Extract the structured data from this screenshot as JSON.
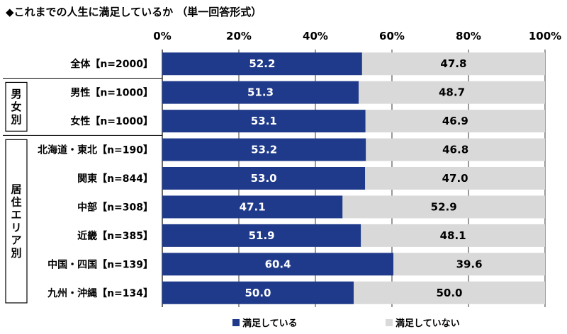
{
  "chart_data": {
    "type": "bar",
    "orientation": "horizontal",
    "stacked": true,
    "title": "◆これまでの人生に満足しているか （単一回答形式）",
    "x_ticks": [
      "0%",
      "20%",
      "40%",
      "60%",
      "80%",
      "100%"
    ],
    "xlim": [
      0,
      100
    ],
    "groups": [
      {
        "label": "",
        "rows": [
          0
        ]
      },
      {
        "label": "男女別",
        "rows": [
          1,
          2
        ]
      },
      {
        "label": "居住エリア別",
        "rows": [
          3,
          4,
          5,
          6,
          7,
          8
        ]
      }
    ],
    "categories": [
      "全体【n=2000】",
      "男性【n=1000】",
      "女性【n=1000】",
      "北海道・東北【n=190】",
      "関東【n=844】",
      "中部【n=308】",
      "近畿【n=385】",
      "中国・四国【n=139】",
      "九州・沖縄【n=134】"
    ],
    "series": [
      {
        "name": "満足している",
        "color": "#1f3a8a",
        "values": [
          52.2,
          51.3,
          53.1,
          53.2,
          53.0,
          47.1,
          51.9,
          60.4,
          50.0
        ],
        "labels": [
          "52.2",
          "51.3",
          "53.1",
          "53.2",
          "53.0",
          "47.1",
          "51.9",
          "60.4",
          "50.0"
        ]
      },
      {
        "name": "満足していない",
        "color": "#d9d9d9",
        "values": [
          47.8,
          48.7,
          46.9,
          46.8,
          47.0,
          52.9,
          48.1,
          39.6,
          50.0
        ],
        "labels": [
          "47.8",
          "48.7",
          "46.9",
          "46.8",
          "47.0",
          "52.9",
          "48.1",
          "39.6",
          "50.0"
        ]
      }
    ],
    "legend_position": "bottom"
  }
}
